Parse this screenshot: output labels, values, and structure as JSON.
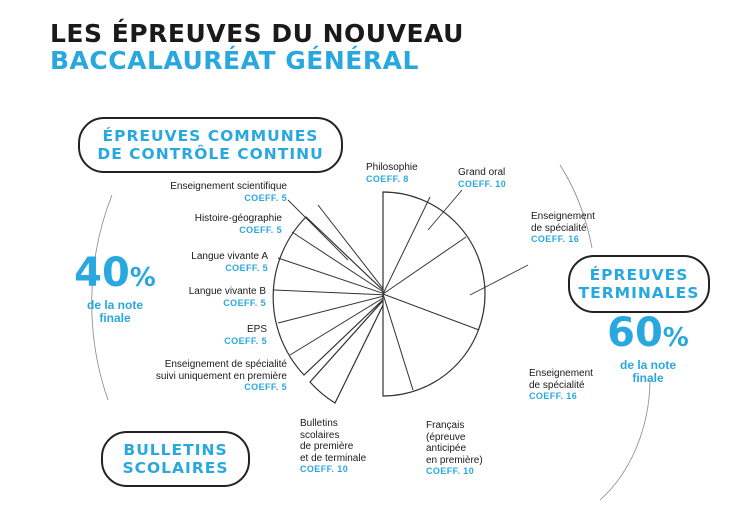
{
  "header": {
    "title_line1": "LES ÉPREUVES DU NOUVEAU",
    "title_line2": "BACCALAURÉAT GÉNÉRAL"
  },
  "pills": {
    "controle_continu": {
      "line1": "ÉPREUVES COMMUNES",
      "line2": "DE CONTRÔLE CONTINU"
    },
    "terminales": {
      "line1": "ÉPREUVES",
      "line2": "TERMINALES"
    },
    "bulletins": {
      "line1": "BULLETINS",
      "line2": "SCOLAIRES"
    }
  },
  "shares": {
    "left": {
      "value": "40",
      "sign": "%",
      "line1": "de la note",
      "line2": "finale"
    },
    "right": {
      "value": "60",
      "sign": "%",
      "line1": "de la note",
      "line2": "finale"
    }
  },
  "labels": {
    "ens_sci": {
      "name": "Enseignement scientifique",
      "coef": "COEFF. 5"
    },
    "histgeo": {
      "name": "Histoire-géographie",
      "coef": "COEFF. 5"
    },
    "lva": {
      "name": "Langue vivante A",
      "coef": "COEFF. 5"
    },
    "lvb": {
      "name": "Langue vivante B",
      "coef": "COEFF. 5"
    },
    "eps": {
      "name": "EPS",
      "coef": "COEFF. 5"
    },
    "spe_premiere": {
      "line1": "Enseignement de spécialité",
      "line2": "suivi uniquement en première",
      "coef": "COEFF. 5"
    },
    "bulletins": {
      "line1": "Bulletins",
      "line2": "scolaires",
      "line3": "de première",
      "line4": "et de terminale",
      "coef": "COEFF. 10"
    },
    "philo": {
      "name": "Philosophie",
      "coef": "COEFF. 8"
    },
    "grand_oral": {
      "name": "Grand oral",
      "coef": "COEFF. 10"
    },
    "spe1": {
      "line1": "Enseignement",
      "line2": "de spécialité",
      "coef": "COEFF. 16"
    },
    "spe2": {
      "line1": "Enseignement",
      "line2": "de spécialité",
      "coef": "COEFF. 16"
    },
    "francais": {
      "line1": "Français",
      "line2": "(épreuve",
      "line3": "anticipée",
      "line4": "en première)",
      "coef": "COEFF. 10"
    }
  },
  "colors": {
    "accent": "#29a8e0",
    "ink": "#1a1a1a",
    "line": "#333333"
  }
}
